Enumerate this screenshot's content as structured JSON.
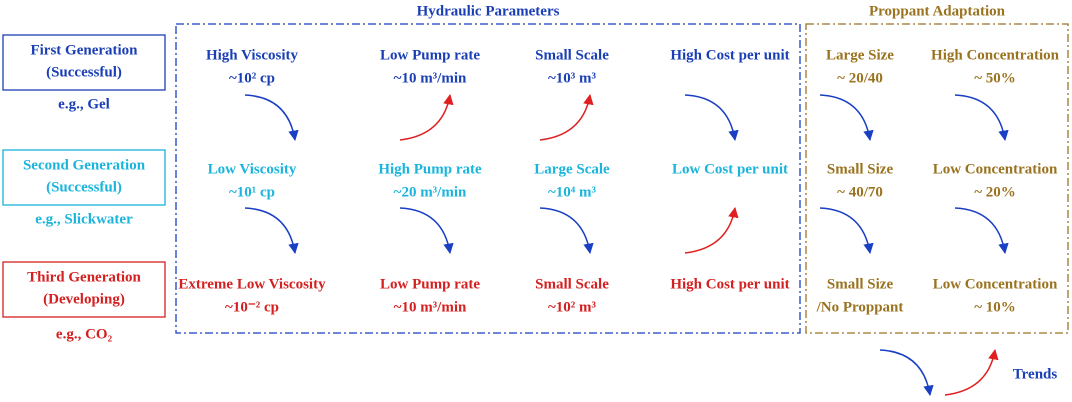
{
  "generations": [
    {
      "lines": [
        "First Generation",
        "(Successful)"
      ],
      "example": "e.g., Gel"
    },
    {
      "lines": [
        "Second Generation",
        "(Successful)"
      ],
      "example": "e.g., Slickwater"
    },
    {
      "lines": [
        "Third Generation",
        "(Developing)"
      ],
      "example": "e.g., CO₂"
    }
  ],
  "hydraulic": {
    "title": "Hydraulic Parameters",
    "rows": [
      [
        [
          "High Viscosity",
          "~10² cp"
        ],
        [
          "Low Pump rate",
          "~10 m³/min"
        ],
        [
          "Small Scale",
          "~10³ m³"
        ],
        [
          "High Cost per unit"
        ]
      ],
      [
        [
          "Low Viscosity",
          "~10¹ cp"
        ],
        [
          "High Pump rate",
          "~20 m³/min"
        ],
        [
          "Large Scale",
          "~10⁴ m³"
        ],
        [
          "Low Cost per unit"
        ]
      ],
      [
        [
          "Extreme Low Viscosity",
          "~10⁻² cp"
        ],
        [
          "Low Pump rate",
          "~10 m³/min"
        ],
        [
          "Small Scale",
          "~10² m³"
        ],
        [
          "High Cost per unit"
        ]
      ]
    ]
  },
  "proppant": {
    "title": "Proppant Adaptation",
    "rows": [
      [
        [
          "Large Size",
          "~ 20/40"
        ],
        [
          "High Concentration",
          "~ 50%"
        ]
      ],
      [
        [
          "Small Size",
          "~ 40/70"
        ],
        [
          "Low Concentration",
          "~ 20%"
        ]
      ],
      [
        [
          "Small Size",
          "/No Proppant"
        ],
        [
          "Low Concentration",
          "~ 10%"
        ]
      ]
    ]
  },
  "legend": {
    "label": "Trends"
  }
}
